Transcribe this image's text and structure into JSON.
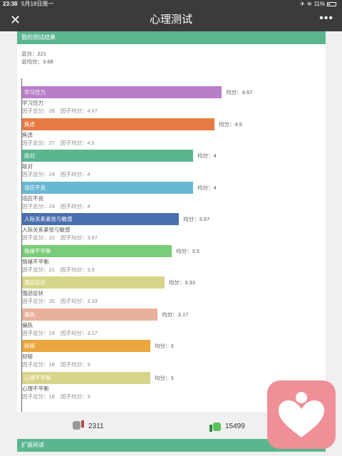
{
  "status": {
    "time": "23:38",
    "date": "5月18日周一",
    "battery": "11%"
  },
  "nav": {
    "close": "✕",
    "title": "心理测试",
    "more": "•••"
  },
  "result": {
    "header": "我的测试结果",
    "total": "总分：221",
    "avg": "总均分：3.68"
  },
  "factor_labels": {
    "total": "因子总分：",
    "avg": "因子均分：",
    "avg_prefix": "均分："
  },
  "chart_data": {
    "type": "bar",
    "orientation": "horizontal",
    "categories": [
      "学习压力",
      "焦虑",
      "敌对",
      "适应不良",
      "人际关系紧张与敏感",
      "情绪不平衡",
      "强迫症状",
      "偏执",
      "抑郁",
      "心理不平衡"
    ],
    "values": [
      4.67,
      4.5,
      4,
      4,
      3.67,
      3.5,
      3.33,
      3.17,
      3,
      3
    ],
    "totals": [
      28,
      27,
      24,
      24,
      22,
      21,
      20,
      19,
      18,
      18
    ],
    "colors": [
      "#b97ec9",
      "#e87b43",
      "#5bb690",
      "#68b8d2",
      "#4a6fae",
      "#79cc78",
      "#d6d68a",
      "#e9b09b",
      "#eba73e",
      "#d7d58a"
    ],
    "xlim": [
      0,
      5
    ],
    "grid": false,
    "legend": "none"
  },
  "votes": {
    "down": "2311",
    "up": "15499"
  },
  "extra": {
    "header": "扩展阅读"
  }
}
